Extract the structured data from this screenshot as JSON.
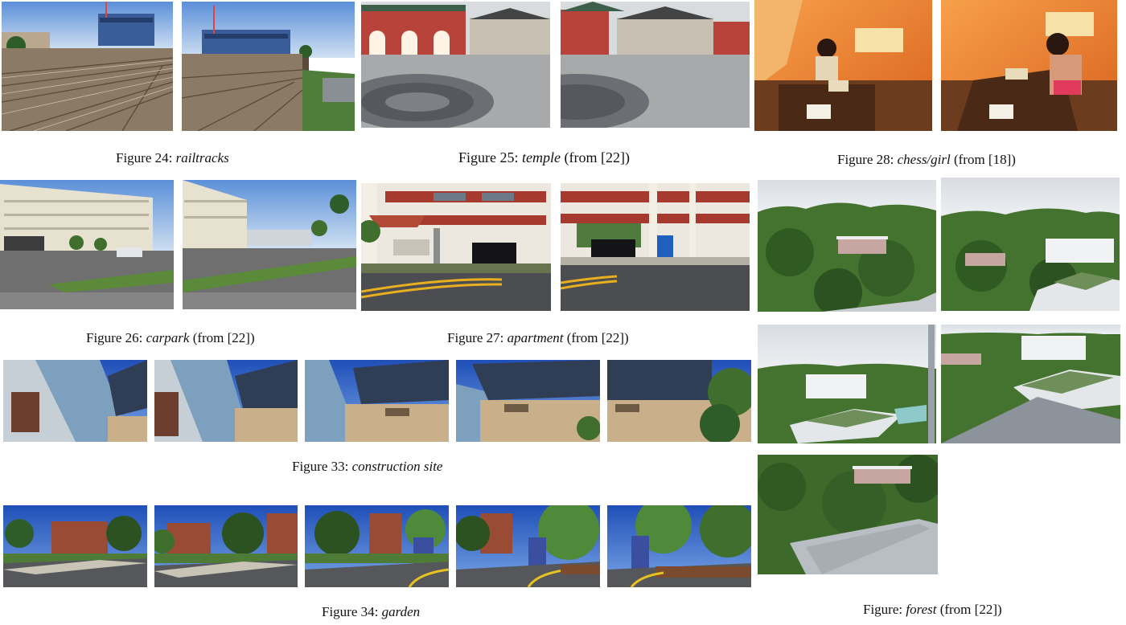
{
  "captions": {
    "fig24": {
      "prefix": "Figure 24: ",
      "name": "railtracks",
      "suffix": ""
    },
    "fig25": {
      "prefix": "Figure 25: ",
      "name": "temple",
      "suffix": " (from [22])"
    },
    "fig28": {
      "prefix": "Figure 28: ",
      "name": "chess/girl",
      "suffix": " (from [18])"
    },
    "fig26": {
      "prefix": "Figure 26: ",
      "name": "carpark",
      "suffix": " (from [22])"
    },
    "fig27": {
      "prefix": "Figure 27: ",
      "name": "apartment",
      "suffix": " (from [22])"
    },
    "fig33": {
      "prefix": "Figure 33: ",
      "name": "construction site",
      "suffix": ""
    },
    "fig34": {
      "prefix": "Figure 34: ",
      "name": "garden",
      "suffix": ""
    },
    "forest": {
      "prefix": "Figure: ",
      "name": "forest",
      "suffix": " (from [22])"
    }
  }
}
